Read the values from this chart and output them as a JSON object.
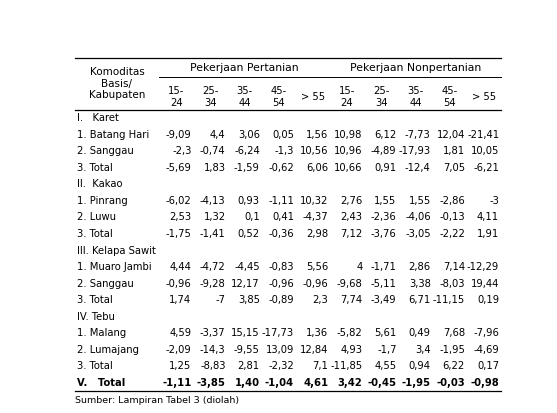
{
  "source": "Sumber: Lampiran Tabel 3 (diolah)",
  "col_group1_label": "Pekerjaan Pertanian",
  "col_group2_label": "Pekerjaan Nonpertanian",
  "age_labels": [
    "15-\n24",
    "25-\n34",
    "35-\n44",
    "45-\n54",
    "> 55",
    "15-\n24",
    "25-\n34",
    "35-\n44",
    "45-\n54",
    "> 55"
  ],
  "rows": [
    {
      "label": "I.   Karet",
      "indent": 0,
      "data": null,
      "bold": false,
      "is_section": true
    },
    {
      "label": "1. Batang Hari",
      "indent": 1,
      "data": [
        "-9,09",
        "4,4",
        "3,06",
        "0,05",
        "1,56",
        "10,98",
        "6,12",
        "-7,73",
        "12,04",
        "-21,41"
      ],
      "bold": false,
      "is_section": false
    },
    {
      "label": "2. Sanggau",
      "indent": 1,
      "data": [
        "-2,3",
        "-0,74",
        "-6,24",
        "-1,3",
        "10,56",
        "10,96",
        "-4,89",
        "-17,93",
        "1,81",
        "10,05"
      ],
      "bold": false,
      "is_section": false
    },
    {
      "label": "3. Total",
      "indent": 1,
      "data": [
        "-5,69",
        "1,83",
        "-1,59",
        "-0,62",
        "6,06",
        "10,66",
        "0,91",
        "-12,4",
        "7,05",
        "-6,21"
      ],
      "bold": false,
      "is_section": false
    },
    {
      "label": "II.  Kakao",
      "indent": 0,
      "data": null,
      "bold": false,
      "is_section": true
    },
    {
      "label": "1. Pinrang",
      "indent": 1,
      "data": [
        "-6,02",
        "-4,13",
        "0,93",
        "-1,11",
        "10,32",
        "2,76",
        "1,55",
        "1,55",
        "-2,86",
        "-3"
      ],
      "bold": false,
      "is_section": false
    },
    {
      "label": "2. Luwu",
      "indent": 1,
      "data": [
        "2,53",
        "1,32",
        "0,1",
        "0,41",
        "-4,37",
        "2,43",
        "-2,36",
        "-4,06",
        "-0,13",
        "4,11"
      ],
      "bold": false,
      "is_section": false
    },
    {
      "label": "3. Total",
      "indent": 1,
      "data": [
        "-1,75",
        "-1,41",
        "0,52",
        "-0,36",
        "2,98",
        "7,12",
        "-3,76",
        "-3,05",
        "-2,22",
        "1,91"
      ],
      "bold": false,
      "is_section": false
    },
    {
      "label": "III. Kelapa Sawit",
      "indent": 0,
      "data": null,
      "bold": false,
      "is_section": true
    },
    {
      "label": "1. Muaro Jambi",
      "indent": 1,
      "data": [
        "4,44",
        "-4,72",
        "-4,45",
        "-0,83",
        "5,56",
        "4",
        "-1,71",
        "2,86",
        "7,14",
        "-12,29"
      ],
      "bold": false,
      "is_section": false
    },
    {
      "label": "2. Sanggau",
      "indent": 1,
      "data": [
        "-0,96",
        "-9,28",
        "12,17",
        "-0,96",
        "-0,96",
        "-9,68",
        "-5,11",
        "3,38",
        "-8,03",
        "19,44"
      ],
      "bold": false,
      "is_section": false
    },
    {
      "label": "3. Total",
      "indent": 1,
      "data": [
        "1,74",
        "-7",
        "3,85",
        "-0,89",
        "2,3",
        "7,74",
        "-3,49",
        "6,71",
        "-11,15",
        "0,19"
      ],
      "bold": false,
      "is_section": false
    },
    {
      "label": "IV. Tebu",
      "indent": 0,
      "data": null,
      "bold": false,
      "is_section": true
    },
    {
      "label": "1. Malang",
      "indent": 1,
      "data": [
        "4,59",
        "-3,37",
        "15,15",
        "-17,73",
        "1,36",
        "-5,82",
        "5,61",
        "0,49",
        "7,68",
        "-7,96"
      ],
      "bold": false,
      "is_section": false
    },
    {
      "label": "2. Lumajang",
      "indent": 1,
      "data": [
        "-2,09",
        "-14,3",
        "-9,55",
        "13,09",
        "12,84",
        "4,93",
        "-1,7",
        "3,4",
        "-1,95",
        "-4,69"
      ],
      "bold": false,
      "is_section": false
    },
    {
      "label": "3. Total",
      "indent": 1,
      "data": [
        "1,25",
        "-8,83",
        "2,81",
        "-2,32",
        "7,1",
        "-11,85",
        "4,55",
        "0,94",
        "6,22",
        "0,17"
      ],
      "bold": false,
      "is_section": false
    },
    {
      "label": "V.   Total",
      "indent": 0,
      "data": [
        "-1,11",
        "-3,85",
        "1,40",
        "-1,04",
        "4,61",
        "3,42",
        "-0,45",
        "-1,95",
        "-0,03",
        "-0,98"
      ],
      "bold": true,
      "is_section": false
    }
  ],
  "figsize": [
    5.57,
    4.13
  ],
  "dpi": 100
}
